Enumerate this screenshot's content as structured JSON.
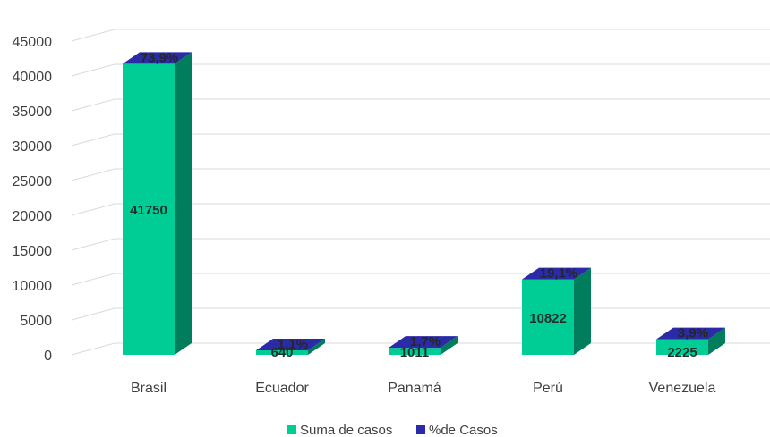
{
  "chart_data": {
    "type": "bar",
    "categories": [
      "Brasil",
      "Ecuador",
      "Panamá",
      "Perú",
      "Venezuela"
    ],
    "series": [
      {
        "name": "Suma de casos",
        "values": [
          41750,
          640,
          1011,
          10822,
          2225
        ],
        "labels": [
          "41750",
          "640",
          "1011",
          "10822",
          "2225"
        ]
      },
      {
        "name": "%de Casos",
        "labels": [
          "73,9%",
          "1,1%",
          "1,7%",
          "19,1%",
          "3,9%"
        ]
      }
    ],
    "yticks": [
      "0",
      "5000",
      "10000",
      "15000",
      "20000",
      "25000",
      "30000",
      "35000",
      "40000",
      "45000"
    ],
    "ylim": [
      0,
      45000
    ],
    "grid": true,
    "legend_position": "bottom",
    "colors": {
      "front": "#00cc96",
      "side": "#007d5c",
      "top": "#2b2ba8",
      "pct_marker": "#2b2ba8",
      "grid": "#d9d9d9"
    }
  }
}
